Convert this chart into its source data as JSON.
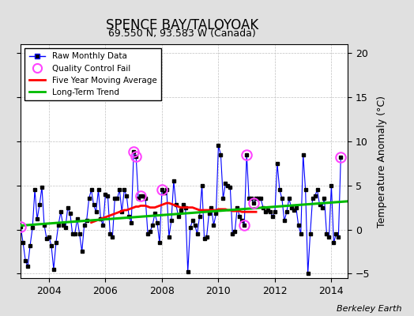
{
  "title": "SPENCE BAY/TALOYOAK",
  "subtitle": "69.550 N, 93.583 W (Canada)",
  "ylabel": "Temperature Anomaly (°C)",
  "credit": "Berkeley Earth",
  "ylim": [
    -5.5,
    21
  ],
  "xlim": [
    2003.0,
    2014.58
  ],
  "yticks": [
    -5,
    0,
    5,
    10,
    15,
    20
  ],
  "xticks": [
    2004,
    2006,
    2008,
    2010,
    2012,
    2014
  ],
  "background_color": "#e0e0e0",
  "plot_bg_color": "#ffffff",
  "grid_color": "#c0c0c0",
  "line_color": "#0000ff",
  "marker_color": "#000000",
  "qc_color": "#ff44ff",
  "moving_avg_color": "#ff0000",
  "trend_color": "#00bb00",
  "raw_data": [
    [
      2003.0,
      0.3
    ],
    [
      2003.083,
      -1.5
    ],
    [
      2003.167,
      -3.5
    ],
    [
      2003.25,
      -4.2
    ],
    [
      2003.333,
      -1.8
    ],
    [
      2003.417,
      0.2
    ],
    [
      2003.5,
      4.5
    ],
    [
      2003.583,
      1.2
    ],
    [
      2003.667,
      2.8
    ],
    [
      2003.75,
      4.8
    ],
    [
      2003.833,
      0.5
    ],
    [
      2003.917,
      -1.0
    ],
    [
      2004.0,
      -0.8
    ],
    [
      2004.083,
      -1.8
    ],
    [
      2004.167,
      -4.5
    ],
    [
      2004.25,
      -1.5
    ],
    [
      2004.333,
      0.5
    ],
    [
      2004.417,
      2.0
    ],
    [
      2004.5,
      0.5
    ],
    [
      2004.583,
      0.2
    ],
    [
      2004.667,
      2.5
    ],
    [
      2004.75,
      1.8
    ],
    [
      2004.833,
      -0.5
    ],
    [
      2004.917,
      -0.5
    ],
    [
      2005.0,
      1.2
    ],
    [
      2005.083,
      -0.5
    ],
    [
      2005.167,
      -2.5
    ],
    [
      2005.25,
      0.5
    ],
    [
      2005.333,
      1.0
    ],
    [
      2005.417,
      3.5
    ],
    [
      2005.5,
      4.5
    ],
    [
      2005.583,
      2.8
    ],
    [
      2005.667,
      2.0
    ],
    [
      2005.75,
      4.5
    ],
    [
      2005.833,
      1.2
    ],
    [
      2005.917,
      0.5
    ],
    [
      2006.0,
      4.0
    ],
    [
      2006.083,
      3.8
    ],
    [
      2006.167,
      -0.5
    ],
    [
      2006.25,
      -0.8
    ],
    [
      2006.333,
      3.5
    ],
    [
      2006.417,
      3.5
    ],
    [
      2006.5,
      4.5
    ],
    [
      2006.583,
      2.0
    ],
    [
      2006.667,
      4.5
    ],
    [
      2006.75,
      3.8
    ],
    [
      2006.833,
      1.5
    ],
    [
      2006.917,
      0.8
    ],
    [
      2007.0,
      8.8
    ],
    [
      2007.083,
      8.3
    ],
    [
      2007.167,
      3.5
    ],
    [
      2007.25,
      3.8
    ],
    [
      2007.333,
      3.8
    ],
    [
      2007.417,
      3.5
    ],
    [
      2007.5,
      -0.5
    ],
    [
      2007.583,
      -0.2
    ],
    [
      2007.667,
      0.5
    ],
    [
      2007.75,
      1.8
    ],
    [
      2007.833,
      0.8
    ],
    [
      2007.917,
      -1.5
    ],
    [
      2008.0,
      4.5
    ],
    [
      2008.083,
      4.2
    ],
    [
      2008.167,
      4.5
    ],
    [
      2008.25,
      -0.8
    ],
    [
      2008.333,
      1.0
    ],
    [
      2008.417,
      5.5
    ],
    [
      2008.5,
      2.8
    ],
    [
      2008.583,
      1.5
    ],
    [
      2008.667,
      2.2
    ],
    [
      2008.75,
      2.8
    ],
    [
      2008.833,
      2.5
    ],
    [
      2008.917,
      -4.8
    ],
    [
      2009.0,
      0.2
    ],
    [
      2009.083,
      1.0
    ],
    [
      2009.167,
      0.5
    ],
    [
      2009.25,
      -0.5
    ],
    [
      2009.333,
      1.5
    ],
    [
      2009.417,
      5.0
    ],
    [
      2009.5,
      -1.0
    ],
    [
      2009.583,
      -0.8
    ],
    [
      2009.667,
      1.8
    ],
    [
      2009.75,
      2.5
    ],
    [
      2009.833,
      0.5
    ],
    [
      2009.917,
      1.8
    ],
    [
      2010.0,
      9.5
    ],
    [
      2010.083,
      8.5
    ],
    [
      2010.167,
      3.5
    ],
    [
      2010.25,
      5.2
    ],
    [
      2010.333,
      5.0
    ],
    [
      2010.417,
      4.8
    ],
    [
      2010.5,
      -0.5
    ],
    [
      2010.583,
      -0.2
    ],
    [
      2010.667,
      2.5
    ],
    [
      2010.75,
      1.5
    ],
    [
      2010.833,
      1.0
    ],
    [
      2010.917,
      0.5
    ],
    [
      2011.0,
      8.5
    ],
    [
      2011.083,
      3.5
    ],
    [
      2011.167,
      3.5
    ],
    [
      2011.25,
      3.0
    ],
    [
      2011.333,
      3.5
    ],
    [
      2011.417,
      3.5
    ],
    [
      2011.5,
      3.5
    ],
    [
      2011.583,
      2.5
    ],
    [
      2011.667,
      2.0
    ],
    [
      2011.75,
      2.2
    ],
    [
      2011.833,
      2.0
    ],
    [
      2011.917,
      1.5
    ],
    [
      2012.0,
      2.0
    ],
    [
      2012.083,
      7.5
    ],
    [
      2012.167,
      4.5
    ],
    [
      2012.25,
      3.5
    ],
    [
      2012.333,
      1.0
    ],
    [
      2012.417,
      2.0
    ],
    [
      2012.5,
      3.5
    ],
    [
      2012.583,
      2.5
    ],
    [
      2012.667,
      2.2
    ],
    [
      2012.75,
      2.5
    ],
    [
      2012.833,
      0.5
    ],
    [
      2012.917,
      -0.5
    ],
    [
      2013.0,
      8.5
    ],
    [
      2013.083,
      4.5
    ],
    [
      2013.167,
      -5.0
    ],
    [
      2013.25,
      -0.5
    ],
    [
      2013.333,
      3.5
    ],
    [
      2013.417,
      3.8
    ],
    [
      2013.5,
      4.5
    ],
    [
      2013.583,
      2.8
    ],
    [
      2013.667,
      2.5
    ],
    [
      2013.75,
      3.5
    ],
    [
      2013.833,
      -0.5
    ],
    [
      2013.917,
      -0.8
    ],
    [
      2014.0,
      5.0
    ],
    [
      2014.083,
      -1.5
    ],
    [
      2014.167,
      -0.5
    ],
    [
      2014.25,
      -0.8
    ],
    [
      2014.333,
      8.2
    ]
  ],
  "qc_fail_points": [
    [
      2003.0,
      0.3
    ],
    [
      2007.0,
      8.8
    ],
    [
      2007.083,
      8.3
    ],
    [
      2007.25,
      3.8
    ],
    [
      2008.0,
      4.5
    ],
    [
      2010.917,
      0.5
    ],
    [
      2011.0,
      8.5
    ],
    [
      2011.25,
      3.0
    ],
    [
      2014.333,
      8.2
    ]
  ],
  "moving_avg": [
    [
      2005.5,
      0.8
    ],
    [
      2005.583,
      0.9
    ],
    [
      2005.667,
      1.0
    ],
    [
      2005.75,
      1.1
    ],
    [
      2005.833,
      1.2
    ],
    [
      2005.917,
      1.3
    ],
    [
      2006.0,
      1.4
    ],
    [
      2006.083,
      1.5
    ],
    [
      2006.167,
      1.6
    ],
    [
      2006.25,
      1.7
    ],
    [
      2006.333,
      1.8
    ],
    [
      2006.417,
      1.9
    ],
    [
      2006.5,
      2.0
    ],
    [
      2006.583,
      2.1
    ],
    [
      2006.667,
      2.2
    ],
    [
      2006.75,
      2.2
    ],
    [
      2006.833,
      2.3
    ],
    [
      2006.917,
      2.4
    ],
    [
      2007.0,
      2.5
    ],
    [
      2007.083,
      2.6
    ],
    [
      2007.167,
      2.6
    ],
    [
      2007.25,
      2.7
    ],
    [
      2007.333,
      2.7
    ],
    [
      2007.417,
      2.7
    ],
    [
      2007.5,
      2.6
    ],
    [
      2007.583,
      2.5
    ],
    [
      2007.667,
      2.5
    ],
    [
      2007.75,
      2.5
    ],
    [
      2007.833,
      2.6
    ],
    [
      2007.917,
      2.7
    ],
    [
      2008.0,
      2.8
    ],
    [
      2008.083,
      2.9
    ],
    [
      2008.167,
      3.0
    ],
    [
      2008.25,
      3.0
    ],
    [
      2008.333,
      2.9
    ],
    [
      2008.417,
      2.8
    ],
    [
      2008.5,
      2.7
    ],
    [
      2008.583,
      2.6
    ],
    [
      2008.667,
      2.5
    ],
    [
      2008.75,
      2.5
    ],
    [
      2008.833,
      2.5
    ],
    [
      2008.917,
      2.5
    ],
    [
      2009.0,
      2.5
    ],
    [
      2009.083,
      2.5
    ],
    [
      2009.167,
      2.4
    ],
    [
      2009.25,
      2.3
    ],
    [
      2009.333,
      2.2
    ],
    [
      2009.417,
      2.2
    ],
    [
      2009.5,
      2.2
    ],
    [
      2009.583,
      2.2
    ],
    [
      2009.667,
      2.2
    ],
    [
      2009.75,
      2.2
    ],
    [
      2009.833,
      2.2
    ],
    [
      2009.917,
      2.2
    ],
    [
      2010.0,
      2.3
    ],
    [
      2010.083,
      2.3
    ],
    [
      2010.167,
      2.3
    ],
    [
      2010.25,
      2.3
    ],
    [
      2010.333,
      2.2
    ],
    [
      2010.417,
      2.2
    ],
    [
      2010.5,
      2.1
    ],
    [
      2010.583,
      2.1
    ],
    [
      2010.667,
      2.1
    ],
    [
      2010.75,
      2.1
    ],
    [
      2010.833,
      2.0
    ],
    [
      2010.917,
      2.0
    ],
    [
      2011.0,
      2.0
    ],
    [
      2011.083,
      2.0
    ],
    [
      2011.167,
      2.0
    ],
    [
      2011.25,
      2.0
    ],
    [
      2011.333,
      2.0
    ]
  ],
  "trend_line": [
    [
      2003.0,
      0.45
    ],
    [
      2014.58,
      3.2
    ]
  ]
}
